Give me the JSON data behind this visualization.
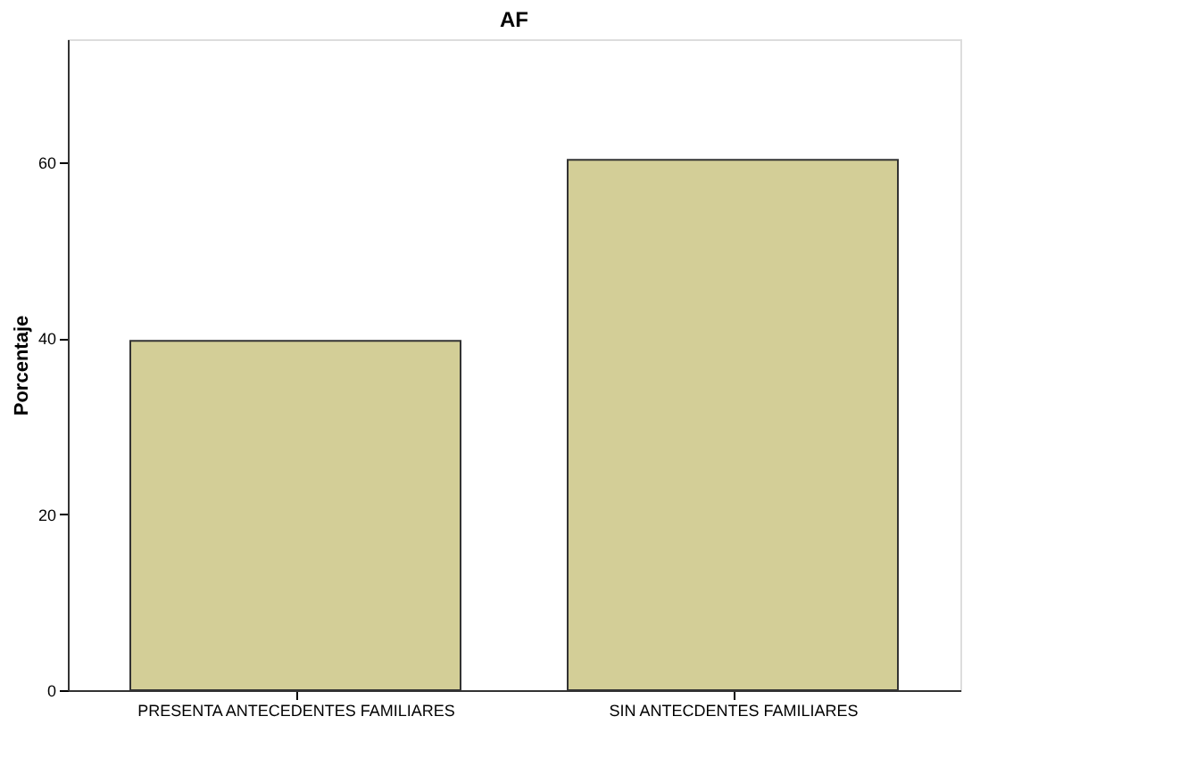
{
  "chart_data": {
    "type": "bar",
    "title": "AF",
    "ylabel": "Porcentaje",
    "categories": [
      "PRESENTA ANTECEDENTES FAMILIARES",
      "SIN ANTECDENTES FAMILIARES"
    ],
    "values": [
      39.7,
      60.3
    ],
    "color": "#d3ce97",
    "ylim": [
      0,
      74
    ],
    "yticks": [
      0,
      20,
      40,
      60
    ],
    "grid": false
  }
}
